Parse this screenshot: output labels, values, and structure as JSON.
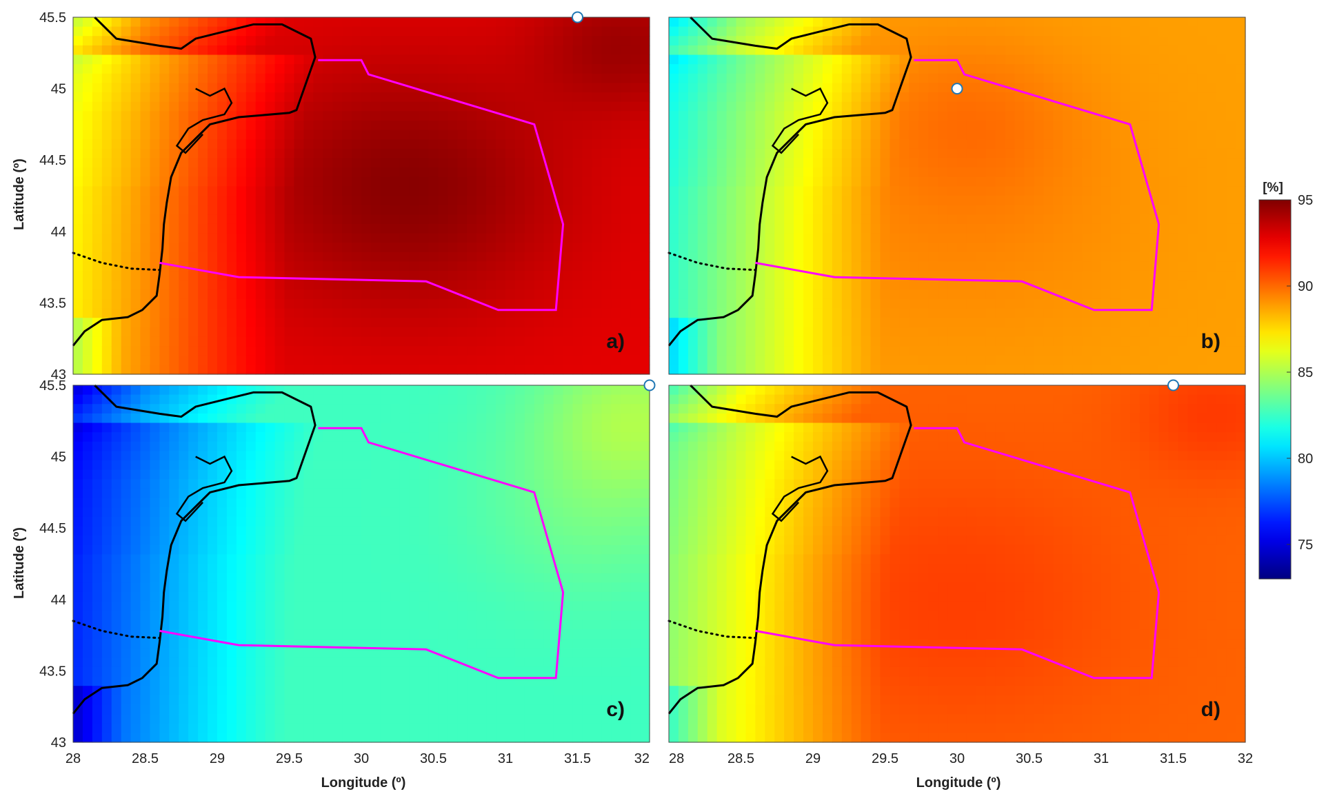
{
  "chart_data": {
    "type": "heatmap",
    "panels": [
      {
        "label": "a)",
        "marker": [
          31.5,
          45.5
        ],
        "field": {
          "base": 92.8,
          "hotspots": [
            [
              30.3,
              44.3,
              1.1,
              2.0
            ],
            [
              31.8,
              45.3,
              0.6,
              1.5
            ]
          ],
          "coast_peak": 91.5,
          "falloff": 0.55,
          "west_floor": 86.0
        }
      },
      {
        "label": "b)",
        "marker": [
          30.0,
          45.0
        ],
        "field": {
          "base": 88.8,
          "hotspots": [
            [
              30.0,
              44.2,
              1.3,
              0.6
            ],
            [
              30.1,
              44.8,
              0.7,
              0.7
            ]
          ],
          "coast_peak": 87.8,
          "falloff": 0.7,
          "west_floor": 80.0
        }
      },
      {
        "label": "c)",
        "marker": [
          32.0,
          45.5
        ],
        "field": {
          "base": 82.6,
          "hotspots": [
            [
              31.9,
              45.3,
              0.7,
              2.2
            ],
            [
              31.6,
              44.6,
              0.8,
              1.0
            ]
          ],
          "coast_peak": 81.5,
          "falloff": 0.9,
          "west_floor": 73.0
        }
      },
      {
        "label": "d)",
        "marker": [
          31.5,
          45.5
        ],
        "field": {
          "base": 90.1,
          "hotspots": [
            [
              30.0,
              44.0,
              1.2,
              0.8
            ],
            [
              31.8,
              45.3,
              0.6,
              0.9
            ]
          ],
          "coast_peak": 89.0,
          "falloff": 0.75,
          "west_floor": 82.0
        }
      }
    ],
    "xlabel": "Longitude (º)",
    "ylabel": "Latitude (º)",
    "xlim": [
      28,
      32
    ],
    "ylim": [
      43,
      45.5
    ],
    "xticks": [
      "28",
      "28.5",
      "29",
      "29.5",
      "30",
      "30.5",
      "31",
      "31.5",
      "32"
    ],
    "yticks": [
      "43",
      "43.5",
      "44",
      "44.5",
      "45",
      "45.5"
    ],
    "colorbar": {
      "unit": "[%]",
      "min": 73,
      "max": 95,
      "ticks": [
        "95",
        "90",
        "85",
        "80",
        "75"
      ],
      "colormap": "jet",
      "placement": "right"
    },
    "polygon": [
      [
        29.7,
        45.2
      ],
      [
        30.0,
        45.2
      ],
      [
        30.05,
        45.1
      ],
      [
        31.2,
        44.75
      ],
      [
        31.4,
        44.05
      ],
      [
        31.35,
        43.45
      ],
      [
        30.95,
        43.45
      ],
      [
        30.45,
        43.65
      ],
      [
        29.15,
        43.68
      ],
      [
        28.6,
        43.78
      ]
    ],
    "coastline": [
      [
        28.15,
        45.5
      ],
      [
        28.3,
        45.35
      ],
      [
        28.6,
        45.3
      ],
      [
        28.75,
        45.28
      ],
      [
        28.85,
        45.35
      ],
      [
        29.05,
        45.4
      ],
      [
        29.25,
        45.45
      ],
      [
        29.45,
        45.45
      ],
      [
        29.65,
        45.35
      ],
      [
        29.68,
        45.22
      ],
      [
        29.62,
        45.05
      ],
      [
        29.55,
        44.85
      ],
      [
        29.5,
        44.83
      ],
      [
        29.15,
        44.8
      ],
      [
        28.95,
        44.75
      ],
      [
        28.85,
        44.65
      ],
      [
        28.75,
        44.55
      ],
      [
        28.68,
        44.38
      ],
      [
        28.65,
        44.2
      ],
      [
        28.63,
        44.05
      ],
      [
        28.62,
        43.88
      ],
      [
        28.6,
        43.7
      ],
      [
        28.58,
        43.55
      ],
      [
        28.48,
        43.45
      ],
      [
        28.38,
        43.4
      ],
      [
        28.2,
        43.38
      ],
      [
        28.08,
        43.3
      ],
      [
        28.0,
        43.2
      ]
    ],
    "border_dotted": [
      [
        28.0,
        43.85
      ],
      [
        28.2,
        43.78
      ],
      [
        28.4,
        43.74
      ],
      [
        28.6,
        43.73
      ]
    ],
    "colors": {
      "polygon": "#ff00ff",
      "coast": "#000000",
      "marker_fill": "#ffffff",
      "marker_stroke": "#1f77b4"
    }
  }
}
